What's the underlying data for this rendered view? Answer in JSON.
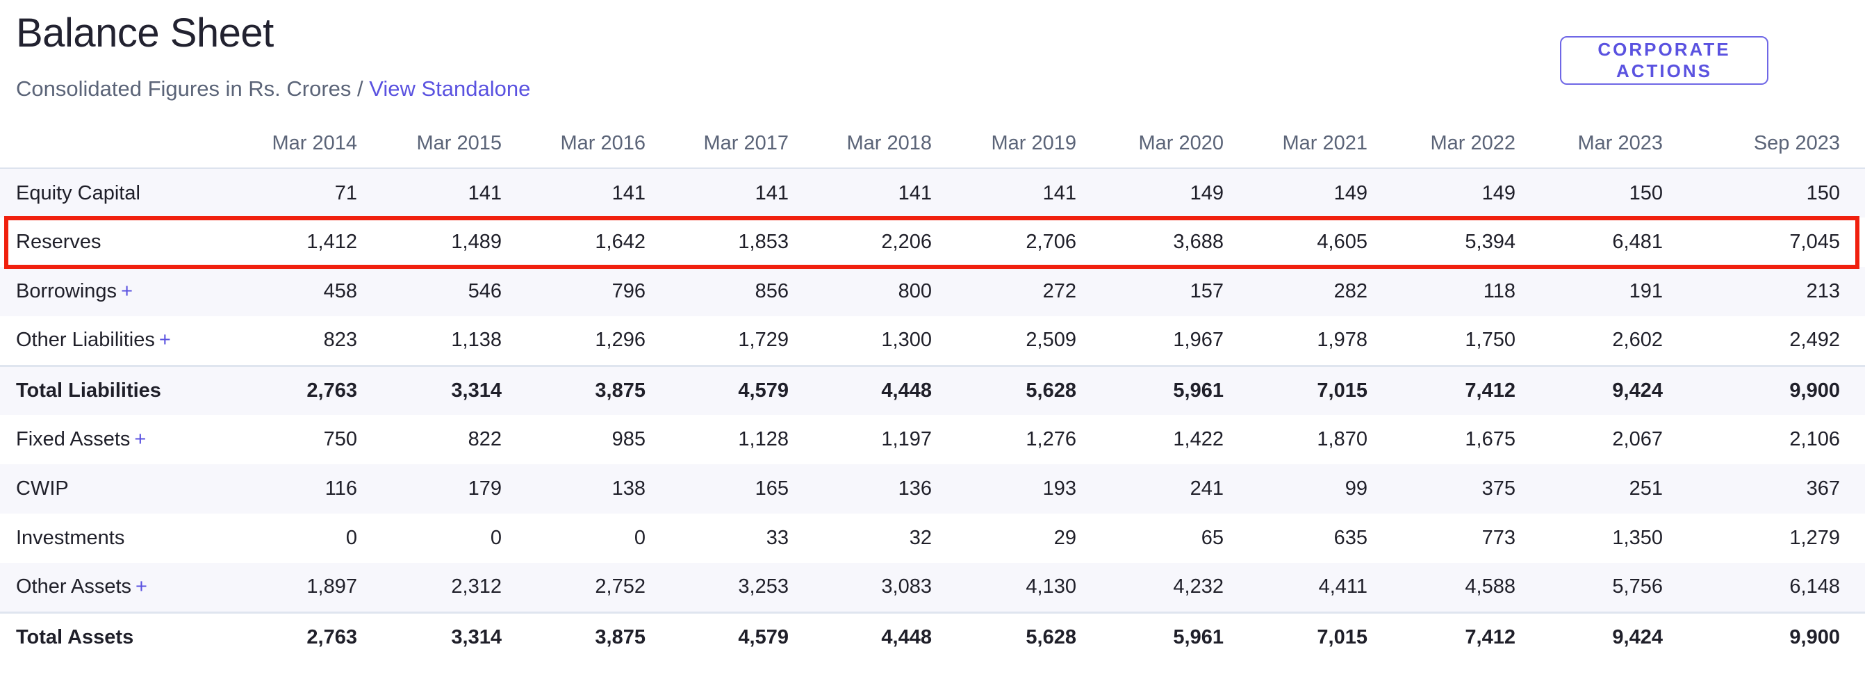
{
  "header": {
    "title": "Balance Sheet",
    "subtitle_prefix": "Consolidated Figures in Rs. Crores / ",
    "subtitle_link": "View Standalone",
    "action_button": "CORPORATE ACTIONS"
  },
  "table": {
    "columns": [
      "Mar 2014",
      "Mar 2015",
      "Mar 2016",
      "Mar 2017",
      "Mar 2018",
      "Mar 2019",
      "Mar 2020",
      "Mar 2021",
      "Mar 2022",
      "Mar 2023",
      "Sep 2023"
    ],
    "expand_symbol": "+",
    "highlighted_row": "Reserves",
    "rows": [
      {
        "label": "Equity Capital",
        "expandable": false,
        "total": false,
        "values": [
          "71",
          "141",
          "141",
          "141",
          "141",
          "141",
          "149",
          "149",
          "149",
          "150",
          "150"
        ]
      },
      {
        "label": "Reserves",
        "expandable": false,
        "total": false,
        "values": [
          "1,412",
          "1,489",
          "1,642",
          "1,853",
          "2,206",
          "2,706",
          "3,688",
          "4,605",
          "5,394",
          "6,481",
          "7,045"
        ]
      },
      {
        "label": "Borrowings",
        "expandable": true,
        "total": false,
        "values": [
          "458",
          "546",
          "796",
          "856",
          "800",
          "272",
          "157",
          "282",
          "118",
          "191",
          "213"
        ]
      },
      {
        "label": "Other Liabilities",
        "expandable": true,
        "total": false,
        "values": [
          "823",
          "1,138",
          "1,296",
          "1,729",
          "1,300",
          "2,509",
          "1,967",
          "1,978",
          "1,750",
          "2,602",
          "2,492"
        ]
      },
      {
        "label": "Total Liabilities",
        "expandable": false,
        "total": true,
        "values": [
          "2,763",
          "3,314",
          "3,875",
          "4,579",
          "4,448",
          "5,628",
          "5,961",
          "7,015",
          "7,412",
          "9,424",
          "9,900"
        ]
      },
      {
        "label": "Fixed Assets",
        "expandable": true,
        "total": false,
        "values": [
          "750",
          "822",
          "985",
          "1,128",
          "1,197",
          "1,276",
          "1,422",
          "1,870",
          "1,675",
          "2,067",
          "2,106"
        ]
      },
      {
        "label": "CWIP",
        "expandable": false,
        "total": false,
        "values": [
          "116",
          "179",
          "138",
          "165",
          "136",
          "193",
          "241",
          "99",
          "375",
          "251",
          "367"
        ]
      },
      {
        "label": "Investments",
        "expandable": false,
        "total": false,
        "values": [
          "0",
          "0",
          "0",
          "33",
          "32",
          "29",
          "65",
          "635",
          "773",
          "1,350",
          "1,279"
        ]
      },
      {
        "label": "Other Assets",
        "expandable": true,
        "total": false,
        "values": [
          "1,897",
          "2,312",
          "2,752",
          "3,253",
          "3,083",
          "4,130",
          "4,232",
          "4,411",
          "4,588",
          "5,756",
          "6,148"
        ]
      },
      {
        "label": "Total Assets",
        "expandable": false,
        "total": true,
        "values": [
          "2,763",
          "3,314",
          "3,875",
          "4,579",
          "4,448",
          "5,628",
          "5,961",
          "7,015",
          "7,412",
          "9,424",
          "9,900"
        ]
      }
    ]
  },
  "colors": {
    "accent": "#5a52e0",
    "highlight_border": "#f0200e",
    "stripe": "#f7f7fc",
    "muted_text": "#5b6478"
  }
}
